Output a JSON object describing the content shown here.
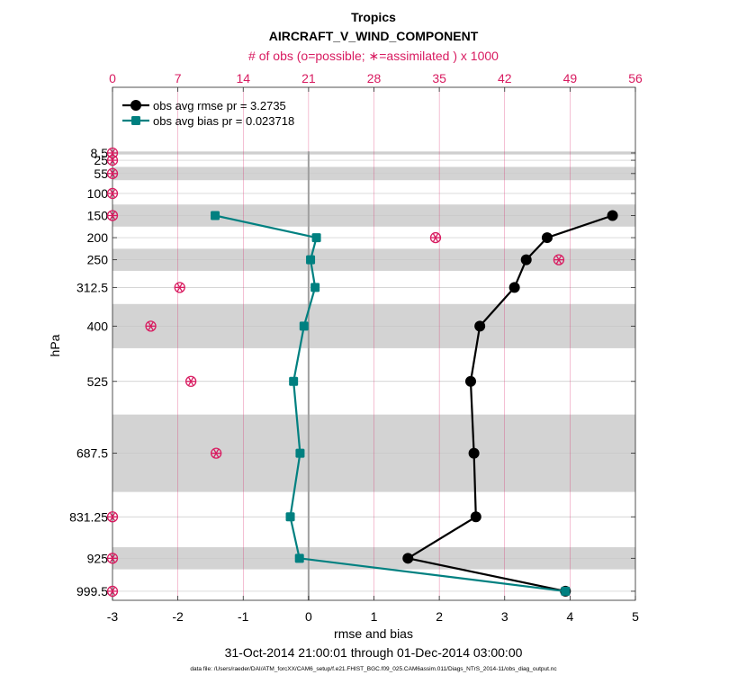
{
  "chart_data": {
    "type": "line",
    "title": "Tropics",
    "subtitle": "AIRCRAFT_V_WIND_COMPONENT",
    "top_axis_label": "# of obs (o=possible; ∗=assimilated ) x 1000",
    "xlabel": "rmse and bias",
    "ylabel": "hPa",
    "date_range": "31-Oct-2014 21:00:01 through 01-Dec-2014 03:00:00",
    "footnote": "data file: /Users/raeder/DAI/ATM_forcXX/CAM6_setup/f.e21.FHIST_BGC.f09_025.CAM6assim.011/Diags_NTrS_2014-11/obs_diag_output.nc",
    "xlim": [
      -3,
      5
    ],
    "x_ticks": [
      "-3",
      "-2",
      "-1",
      "0",
      "1",
      "2",
      "3",
      "4",
      "5"
    ],
    "top_xlim": [
      0,
      56
    ],
    "top_ticks": [
      "0",
      "7",
      "14",
      "21",
      "28",
      "35",
      "42",
      "49",
      "56"
    ],
    "levels": [
      8.5,
      25,
      55,
      100,
      150,
      200,
      250,
      312.5,
      400,
      525,
      687.5,
      831.25,
      925,
      999.5
    ],
    "level_labels": [
      "8.5",
      "25",
      "55",
      "100",
      "150",
      "200",
      "250",
      "312.5",
      "400",
      "525",
      "687.5",
      "831.25",
      "925",
      "999.5"
    ],
    "legend_location": "top-left",
    "series": [
      {
        "name": "obs avg rmse pr = 3.2735",
        "color": "#000000",
        "marker": "circle",
        "points": [
          {
            "level": 150,
            "value": 4.65
          },
          {
            "level": 200,
            "value": 3.65
          },
          {
            "level": 250,
            "value": 3.33
          },
          {
            "level": 312.5,
            "value": 3.15
          },
          {
            "level": 400,
            "value": 2.62
          },
          {
            "level": 525,
            "value": 2.48
          },
          {
            "level": 687.5,
            "value": 2.53
          },
          {
            "level": 831.25,
            "value": 2.56
          },
          {
            "level": 925,
            "value": 1.52
          },
          {
            "level": 999.5,
            "value": 3.93
          }
        ]
      },
      {
        "name": "obs avg bias pr = 0.023718",
        "color": "#008080",
        "marker": "square",
        "points": [
          {
            "level": 150,
            "value": -1.43
          },
          {
            "level": 200,
            "value": 0.12
          },
          {
            "level": 250,
            "value": 0.03
          },
          {
            "level": 312.5,
            "value": 0.1
          },
          {
            "level": 400,
            "value": -0.07
          },
          {
            "level": 525,
            "value": -0.23
          },
          {
            "level": 687.5,
            "value": -0.13
          },
          {
            "level": 831.25,
            "value": -0.28
          },
          {
            "level": 925,
            "value": -0.14
          },
          {
            "level": 999.5,
            "value": 3.93
          }
        ]
      }
    ],
    "obs_counts": {
      "color": "#d81b60",
      "unit": "x 1000",
      "possible": [
        {
          "level": 8.5,
          "value": 0
        },
        {
          "level": 25,
          "value": 0
        },
        {
          "level": 55,
          "value": 0
        },
        {
          "level": 100,
          "value": 0
        },
        {
          "level": 150,
          "value": 0
        },
        {
          "level": 200,
          "value": 34.6
        },
        {
          "level": 250,
          "value": 47.8
        },
        {
          "level": 312.5,
          "value": 7.2
        },
        {
          "level": 400,
          "value": 4.1
        },
        {
          "level": 525,
          "value": 8.4
        },
        {
          "level": 687.5,
          "value": 11.1
        },
        {
          "level": 831.25,
          "value": 0
        },
        {
          "level": 925,
          "value": 0
        },
        {
          "level": 999.5,
          "value": 0
        }
      ],
      "assimilated": [
        {
          "level": 8.5,
          "value": 0
        },
        {
          "level": 25,
          "value": 0
        },
        {
          "level": 55,
          "value": 0
        },
        {
          "level": 100,
          "value": 0
        },
        {
          "level": 150,
          "value": 0
        },
        {
          "level": 200,
          "value": 34.6
        },
        {
          "level": 250,
          "value": 47.8
        },
        {
          "level": 312.5,
          "value": 7.2
        },
        {
          "level": 400,
          "value": 4.1
        },
        {
          "level": 525,
          "value": 8.4
        },
        {
          "level": 687.5,
          "value": 11.1
        },
        {
          "level": 831.25,
          "value": 0
        },
        {
          "level": 925,
          "value": 0
        },
        {
          "level": 999.5,
          "value": 0
        }
      ]
    },
    "layer_bounds": [
      [
        5,
        12
      ],
      [
        40,
        70
      ],
      [
        125,
        175
      ],
      [
        225,
        275
      ],
      [
        350,
        450
      ],
      [
        600,
        775
      ],
      [
        900,
        950
      ]
    ]
  }
}
